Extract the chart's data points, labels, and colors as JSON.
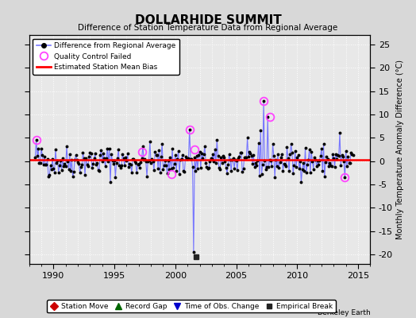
{
  "title": "DOLLARHIDE SUMMIT",
  "subtitle": "Difference of Station Temperature Data from Regional Average",
  "ylabel_right": "Monthly Temperature Anomaly Difference (°C)",
  "credit": "Berkeley Earth",
  "xlim": [
    1988.0,
    2016.0
  ],
  "ylim": [
    -22,
    27
  ],
  "yticks": [
    -20,
    -15,
    -10,
    -5,
    0,
    5,
    10,
    15,
    20,
    25
  ],
  "xticks": [
    1990,
    1995,
    2000,
    2005,
    2010,
    2015
  ],
  "background_color": "#d8d8d8",
  "plot_bg_color": "#e8e8e8",
  "grid_color": "#ffffff",
  "mean_bias": 0.3,
  "empirical_break_x": 2001.7,
  "empirical_break_y": -20.5,
  "qc_failed_points": [
    [
      1988.6,
      4.5
    ],
    [
      1997.3,
      2.0
    ],
    [
      1999.7,
      -2.8
    ],
    [
      2001.2,
      6.8
    ],
    [
      2001.6,
      2.5
    ],
    [
      2007.25,
      12.8
    ],
    [
      2007.75,
      9.5
    ],
    [
      2013.9,
      -3.5
    ]
  ],
  "main_line_color": "#7777ff",
  "main_dot_color": "#000000",
  "bias_line_color": "#ff0000",
  "qc_color": "#ff44ff",
  "empirical_break_color": "#222222",
  "station_move_color": "#cc0000",
  "record_gap_color": "#006600",
  "time_obs_color": "#0000cc",
  "seed": 42,
  "noise_scale": 1.7
}
